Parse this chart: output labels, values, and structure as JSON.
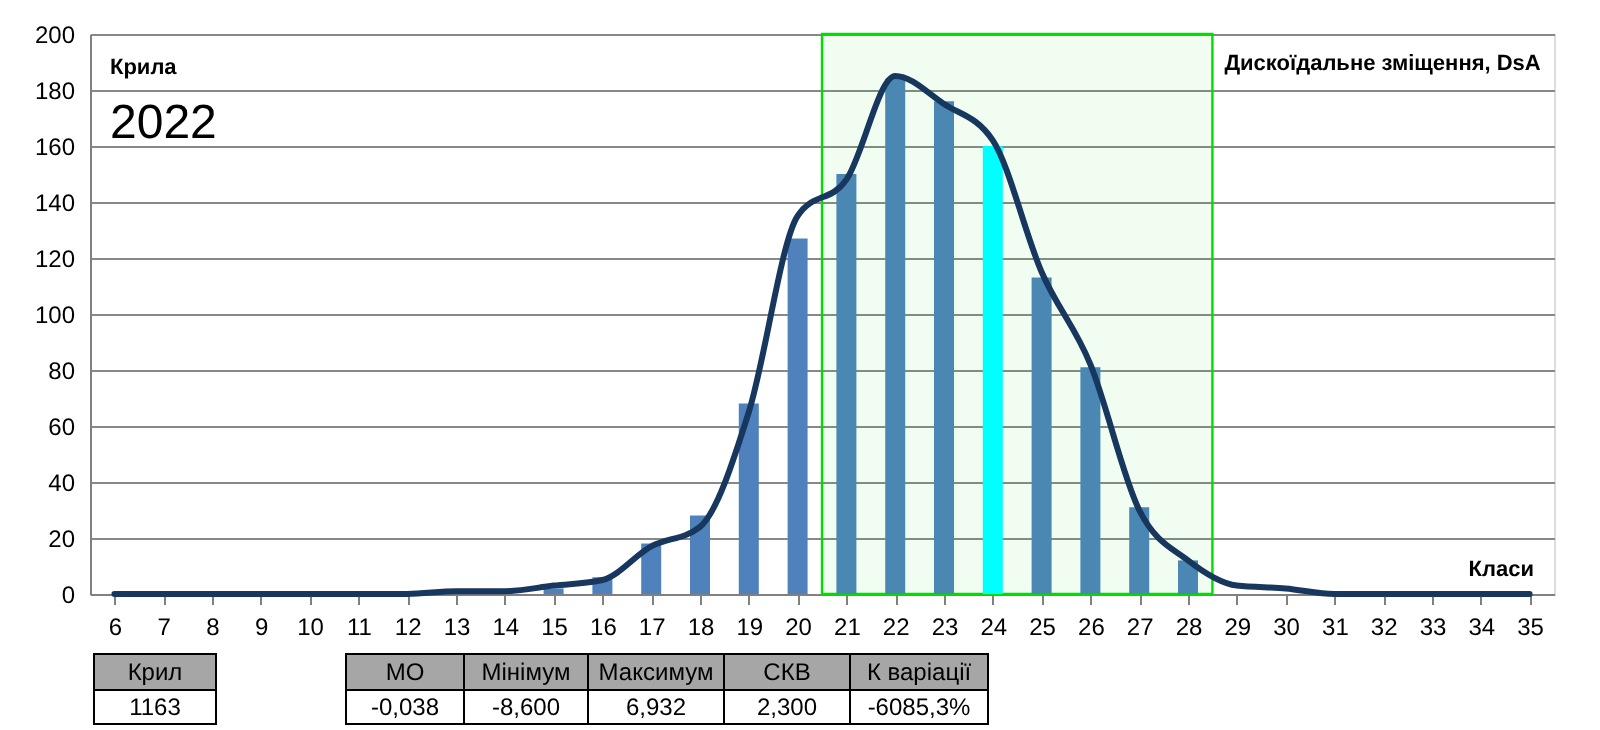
{
  "chart_data": {
    "type": "bar",
    "xlabel": "Класи",
    "x": [
      6,
      7,
      8,
      9,
      10,
      11,
      12,
      13,
      14,
      15,
      16,
      17,
      18,
      19,
      20,
      21,
      22,
      23,
      24,
      25,
      26,
      27,
      28,
      29,
      30,
      31,
      32,
      33,
      34,
      35
    ],
    "series": [
      {
        "colors": [
          "#4f81bd",
          "#4f81bd",
          "#4f81bd",
          "#4f81bd",
          "#4f81bd",
          "#4f81bd",
          "#4f81bd",
          "#4f81bd",
          "#4f81bd",
          "#4f81bd",
          "#4f81bd",
          "#4f81bd",
          "#4f81bd",
          "#4f81bd",
          "#4f81bd",
          "#4a87b3",
          "#4a87b3",
          "#4a87b3",
          "#00ffff",
          "#4a87b3",
          "#4a87b3",
          "#4a87b3",
          "#4a87b3",
          "#4f81bd",
          "#4f81bd",
          "#4f81bd",
          "#4f81bd",
          "#4f81bd",
          "#4f81bd",
          "#4f81bd"
        ],
        "values": [
          0,
          0,
          0,
          0,
          0,
          0,
          0,
          0,
          0,
          2,
          6,
          18,
          28,
          68,
          127,
          150,
          184,
          176,
          160,
          113,
          81,
          31,
          12,
          0,
          0,
          0,
          0,
          0,
          0,
          0
        ]
      },
      {
        "type": "line",
        "color": "#17375e",
        "values": [
          0,
          0,
          0,
          0,
          0,
          0,
          0,
          1,
          1,
          3,
          5,
          17,
          24,
          65,
          135,
          148,
          185,
          175,
          162,
          115,
          82,
          30,
          12,
          3,
          2,
          0,
          0,
          0,
          0,
          0
        ]
      }
    ],
    "xlim": [
      5.5,
      35.5
    ],
    "xticks": [
      6,
      7,
      8,
      9,
      10,
      11,
      12,
      13,
      14,
      15,
      16,
      17,
      18,
      19,
      20,
      21,
      22,
      23,
      24,
      25,
      26,
      27,
      28,
      29,
      30,
      31,
      32,
      33,
      34,
      35
    ],
    "ylim": [
      0,
      200
    ],
    "yticks": [
      0,
      20,
      40,
      60,
      80,
      100,
      120,
      140,
      160,
      180,
      200
    ],
    "bands": [
      {
        "axis": "x",
        "from": 20.5,
        "to": 28.5,
        "label": "Дискоїдальне зміщення, DsA",
        "color": "#00dd00"
      }
    ],
    "annotations": [
      "Крила",
      "2022",
      "Крил",
      "1163",
      "МО",
      "-0,038",
      "Мінімум",
      "-8,600",
      "Максимум",
      "6,932",
      "СКВ",
      "2,300",
      "К варіації",
      "-6085,3%"
    ],
    "grid": "y"
  }
}
